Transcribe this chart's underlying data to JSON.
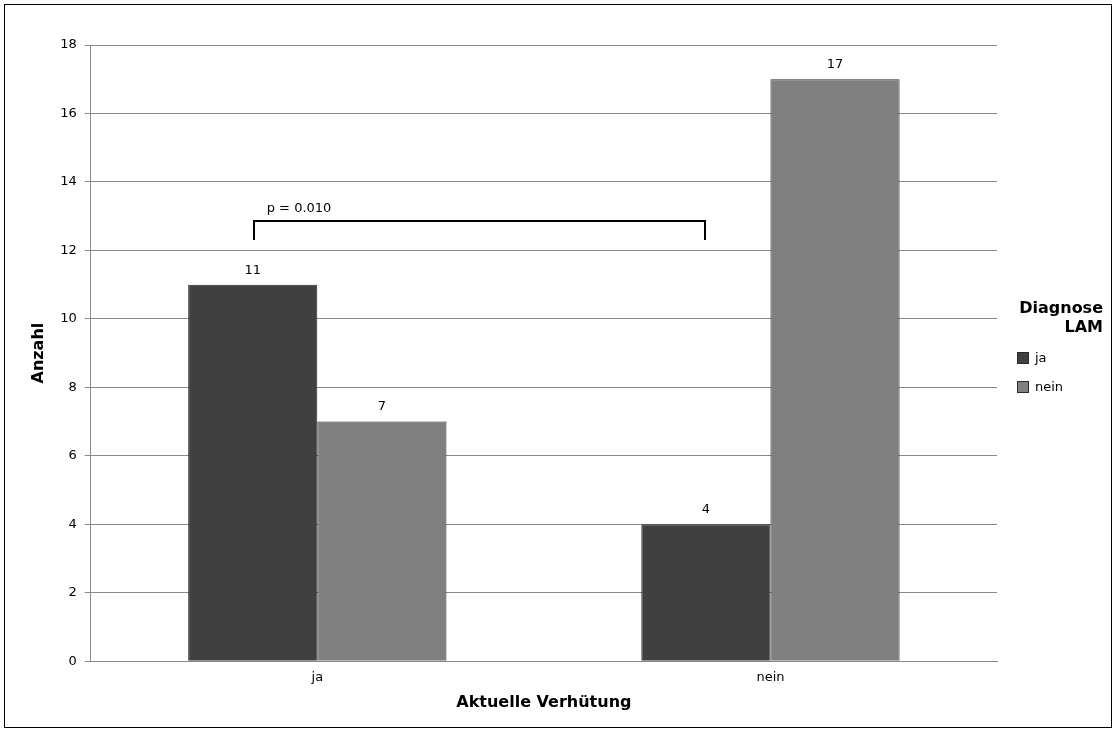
{
  "chart_data": {
    "type": "bar",
    "xlabel": "Aktuelle Verhütung",
    "ylabel": "Anzahl",
    "legend_title": "Diagnose LAM",
    "categories": [
      "ja",
      "nein"
    ],
    "series": [
      {
        "name": "ja",
        "color": "#404040",
        "values": [
          11,
          4
        ]
      },
      {
        "name": "nein",
        "color": "#808080",
        "values": [
          7,
          17
        ]
      }
    ],
    "ylim": [
      0,
      18
    ],
    "yticks": [
      0,
      2,
      4,
      6,
      8,
      10,
      12,
      14,
      16,
      18
    ],
    "grid": "y",
    "legend": "right",
    "data_labels": true,
    "annotations": [
      "p = 0.010"
    ]
  }
}
